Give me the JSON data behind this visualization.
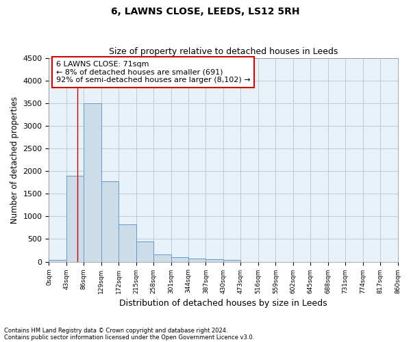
{
  "title": "6, LAWNS CLOSE, LEEDS, LS12 5RH",
  "subtitle": "Size of property relative to detached houses in Leeds",
  "xlabel": "Distribution of detached houses by size in Leeds",
  "ylabel": "Number of detached properties",
  "bar_values": [
    40,
    1900,
    3500,
    1770,
    830,
    450,
    160,
    100,
    75,
    55,
    40,
    0,
    0,
    0,
    0,
    0,
    0,
    0,
    0,
    0
  ],
  "bar_color": "#ccdce8",
  "bar_edge_color": "#6699cc",
  "tick_labels": [
    "0sqm",
    "43sqm",
    "86sqm",
    "129sqm",
    "172sqm",
    "215sqm",
    "258sqm",
    "301sqm",
    "344sqm",
    "387sqm",
    "430sqm",
    "473sqm",
    "516sqm",
    "559sqm",
    "602sqm",
    "645sqm",
    "688sqm",
    "731sqm",
    "774sqm",
    "817sqm",
    "860sqm"
  ],
  "ylim": [
    0,
    4500
  ],
  "yticks": [
    0,
    500,
    1000,
    1500,
    2000,
    2500,
    3000,
    3500,
    4000,
    4500
  ],
  "property_line_x": 1.65,
  "annotation_text": "6 LAWNS CLOSE: 71sqm\n← 8% of detached houses are smaller (691)\n92% of semi-detached houses are larger (8,102) →",
  "annotation_box_color": "#ffffff",
  "annotation_box_edge": "#cc0000",
  "footnote1": "Contains HM Land Registry data © Crown copyright and database right 2024.",
  "footnote2": "Contains public sector information licensed under the Open Government Licence v3.0.",
  "grid_color": "#bbccd8",
  "background_color": "#e8f0f8"
}
